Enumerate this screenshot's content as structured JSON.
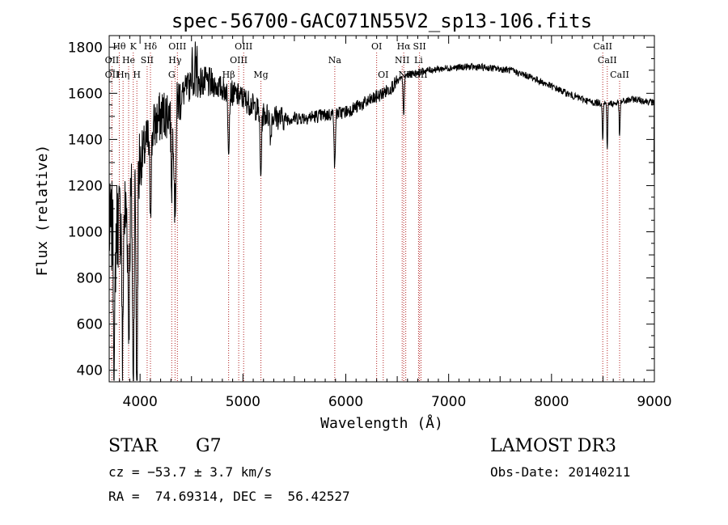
{
  "chart_data": {
    "type": "line",
    "title": "spec-56700-GAC071N55V2_sp13-106.fits",
    "xlabel": "Wavelength (Å)",
    "ylabel": "Flux (relative)",
    "xlim": [
      3700,
      9000
    ],
    "ylim": [
      350,
      1850
    ],
    "xticks": [
      4000,
      5000,
      6000,
      7000,
      8000,
      9000
    ],
    "yticks": [
      400,
      600,
      800,
      1000,
      1200,
      1400,
      1600,
      1800
    ],
    "grid": false,
    "series": [
      {
        "name": "flux",
        "continuum": [
          [
            3700,
            1000
          ],
          [
            3800,
            1050
          ],
          [
            3900,
            1100
          ],
          [
            4000,
            1300
          ],
          [
            4100,
            1430
          ],
          [
            4200,
            1500
          ],
          [
            4300,
            1530
          ],
          [
            4400,
            1590
          ],
          [
            4500,
            1640
          ],
          [
            4600,
            1650
          ],
          [
            4700,
            1640
          ],
          [
            4800,
            1620
          ],
          [
            4900,
            1600
          ],
          [
            5000,
            1580
          ],
          [
            5200,
            1510
          ],
          [
            5400,
            1490
          ],
          [
            5600,
            1495
          ],
          [
            5800,
            1505
          ],
          [
            6000,
            1520
          ],
          [
            6200,
            1560
          ],
          [
            6400,
            1610
          ],
          [
            6500,
            1650
          ],
          [
            6600,
            1680
          ],
          [
            6800,
            1700
          ],
          [
            7000,
            1710
          ],
          [
            7200,
            1715
          ],
          [
            7400,
            1710
          ],
          [
            7600,
            1700
          ],
          [
            7800,
            1670
          ],
          [
            8000,
            1630
          ],
          [
            8200,
            1590
          ],
          [
            8400,
            1560
          ],
          [
            8600,
            1555
          ],
          [
            8800,
            1575
          ],
          [
            9000,
            1560
          ]
        ],
        "absorption": [
          [
            3750,
            600,
            10
          ],
          [
            3830,
            650,
            8
          ],
          [
            3890,
            500,
            10
          ],
          [
            3934,
            950,
            9
          ],
          [
            3969,
            1000,
            9
          ],
          [
            4101,
            300,
            12
          ],
          [
            4308,
            320,
            10
          ],
          [
            4340,
            460,
            12
          ],
          [
            4861,
            230,
            10
          ],
          [
            5173,
            280,
            10
          ],
          [
            5270,
            100,
            8
          ],
          [
            5893,
            240,
            8
          ],
          [
            6563,
            180,
            7
          ],
          [
            8498,
            160,
            6
          ],
          [
            8542,
            200,
            6
          ],
          [
            8662,
            160,
            6
          ]
        ]
      }
    ],
    "lines": [
      {
        "label": "Hθ",
        "wl": 3798,
        "row": 1
      },
      {
        "label": "K",
        "wl": 3934,
        "row": 1
      },
      {
        "label": "Hδ",
        "wl": 4101,
        "row": 1
      },
      {
        "label": "OIII",
        "wl": 4363,
        "row": 1
      },
      {
        "label": "OIII",
        "wl": 5007,
        "row": 1
      },
      {
        "label": "OI",
        "wl": 6300,
        "row": 1
      },
      {
        "label": "Hα",
        "wl": 6563,
        "row": 1
      },
      {
        "label": "SII",
        "wl": 6717,
        "row": 1
      },
      {
        "label": "CaII",
        "wl": 8498,
        "row": 1
      },
      {
        "label": "OII",
        "wl": 3727,
        "row": 2
      },
      {
        "label": "He",
        "wl": 3889,
        "row": 2
      },
      {
        "label": "SII",
        "wl": 4069,
        "row": 2
      },
      {
        "label": "Hγ",
        "wl": 4340,
        "row": 2
      },
      {
        "label": "OIII",
        "wl": 4959,
        "row": 2
      },
      {
        "label": "NII",
        "wl": 6548,
        "row": 2
      },
      {
        "label": "Li",
        "wl": 6707,
        "row": 2
      },
      {
        "label": "CaII",
        "wl": 8542,
        "row": 2
      },
      {
        "label": "Na",
        "wl": 5893,
        "row": 2
      },
      {
        "label": "OII",
        "wl": 3727,
        "row": 3
      },
      {
        "label": "Hη",
        "wl": 3835,
        "row": 3
      },
      {
        "label": "H",
        "wl": 3969,
        "row": 3
      },
      {
        "label": "G",
        "wl": 4308,
        "row": 3
      },
      {
        "label": "Hβ",
        "wl": 4861,
        "row": 3
      },
      {
        "label": "Mg",
        "wl": 5175,
        "row": 3
      },
      {
        "label": "OI",
        "wl": 6364,
        "row": 3
      },
      {
        "label": "NII",
        "wl": 6583,
        "row": 3
      },
      {
        "label": "SII",
        "wl": 6731,
        "row": 3
      },
      {
        "label": "CaII",
        "wl": 8662,
        "row": 3
      }
    ]
  },
  "info": {
    "class_label": "STAR",
    "subclass": "G7",
    "survey": "LAMOST DR3",
    "cz": "cz = −53.7 ± 3.7 km/s",
    "obs_date": "Obs-Date: 20140211",
    "coords": "RA =  74.69314, DEC =  56.42527"
  },
  "colors": {
    "line": "#000000",
    "marker": "#b22222",
    "background": "#ffffff"
  }
}
